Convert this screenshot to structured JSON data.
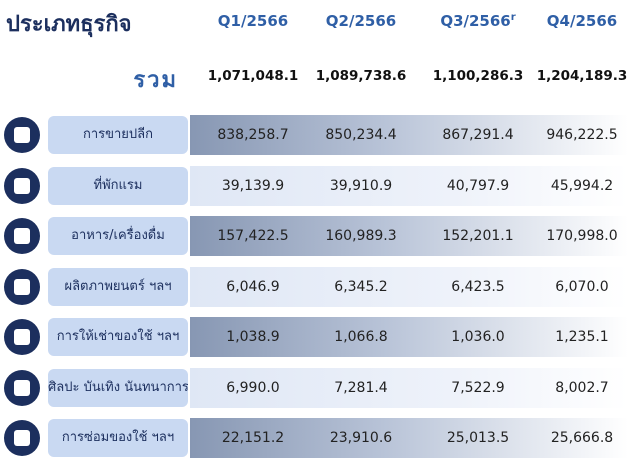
{
  "header": {
    "title": "ประเภทธุรกิจ",
    "columns": [
      {
        "label": "Q1/2566"
      },
      {
        "label": "Q2/2566"
      },
      {
        "label": "Q3/2566",
        "note": "r"
      },
      {
        "label": "Q4/2566"
      }
    ]
  },
  "total": {
    "label": "รวม",
    "values": [
      "1,071,048.1",
      "1,089,738.6",
      "1,100,286.3",
      "1,204,189.3"
    ]
  },
  "table": {
    "rows": [
      {
        "label": "การขายปลีก",
        "values": [
          "838,258.7",
          "850,234.4",
          "867,291.4",
          "946,222.5"
        ]
      },
      {
        "label": "ที่พักแรม",
        "values": [
          "39,139.9",
          "39,910.9",
          "40,797.9",
          "45,994.2"
        ]
      },
      {
        "label": "อาหาร/เครื่องดื่ม",
        "values": [
          "157,422.5",
          "160,989.3",
          "152,201.1",
          "170,998.0"
        ]
      },
      {
        "label": "ผลิตภาพยนตร์ ฯลฯ",
        "values": [
          "6,046.9",
          "6,345.2",
          "6,423.5",
          "6,070.0"
        ]
      },
      {
        "label": "การให้เช่าของใช้ ฯลฯ",
        "values": [
          "1,038.9",
          "1,066.8",
          "1,036.0",
          "1,235.1"
        ]
      },
      {
        "label": "ศิลปะ บันเทิง นันทนาการ",
        "values": [
          "6,990.0",
          "7,281.4",
          "7,522.9",
          "8,002.7"
        ]
      },
      {
        "label": "การซ่อมของใช้ ฯลฯ",
        "values": [
          "22,151.2",
          "23,910.6",
          "25,013.5",
          "25,666.8"
        ]
      }
    ]
  }
}
